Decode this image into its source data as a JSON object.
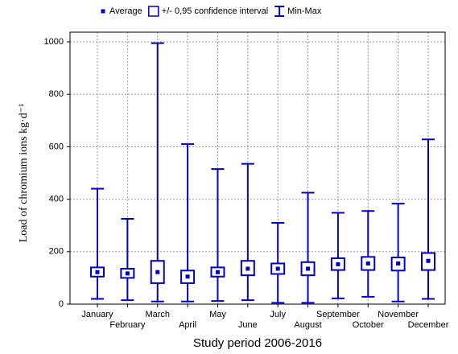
{
  "chart_data": {
    "type": "box",
    "ylabel": "Load of chromium ions kg·d⁻¹",
    "xlabel": "Study period 2006-2016",
    "categories": [
      "January",
      "February",
      "March",
      "April",
      "May",
      "June",
      "July",
      "August",
      "September",
      "October",
      "November",
      "December"
    ],
    "series": [
      {
        "name": "Average",
        "values": [
          122,
          117,
          122,
          105,
          122,
          135,
          135,
          135,
          152,
          155,
          155,
          165
        ]
      },
      {
        "name": "+/- 0,95 confidence interval",
        "low": [
          105,
          100,
          80,
          80,
          105,
          110,
          115,
          110,
          130,
          130,
          128,
          130
        ],
        "high": [
          140,
          135,
          165,
          128,
          140,
          165,
          155,
          160,
          175,
          180,
          178,
          195
        ]
      },
      {
        "name": "Min-Max",
        "low": [
          20,
          15,
          10,
          10,
          12,
          15,
          5,
          5,
          22,
          28,
          10,
          20
        ],
        "high": [
          440,
          325,
          995,
          610,
          515,
          535,
          310,
          425,
          348,
          355,
          383,
          628
        ]
      }
    ],
    "color": "#0000cc",
    "ylim": [
      0,
      1000
    ],
    "yticks": [
      0,
      200,
      400,
      600,
      800,
      1000
    ],
    "grid": true
  }
}
